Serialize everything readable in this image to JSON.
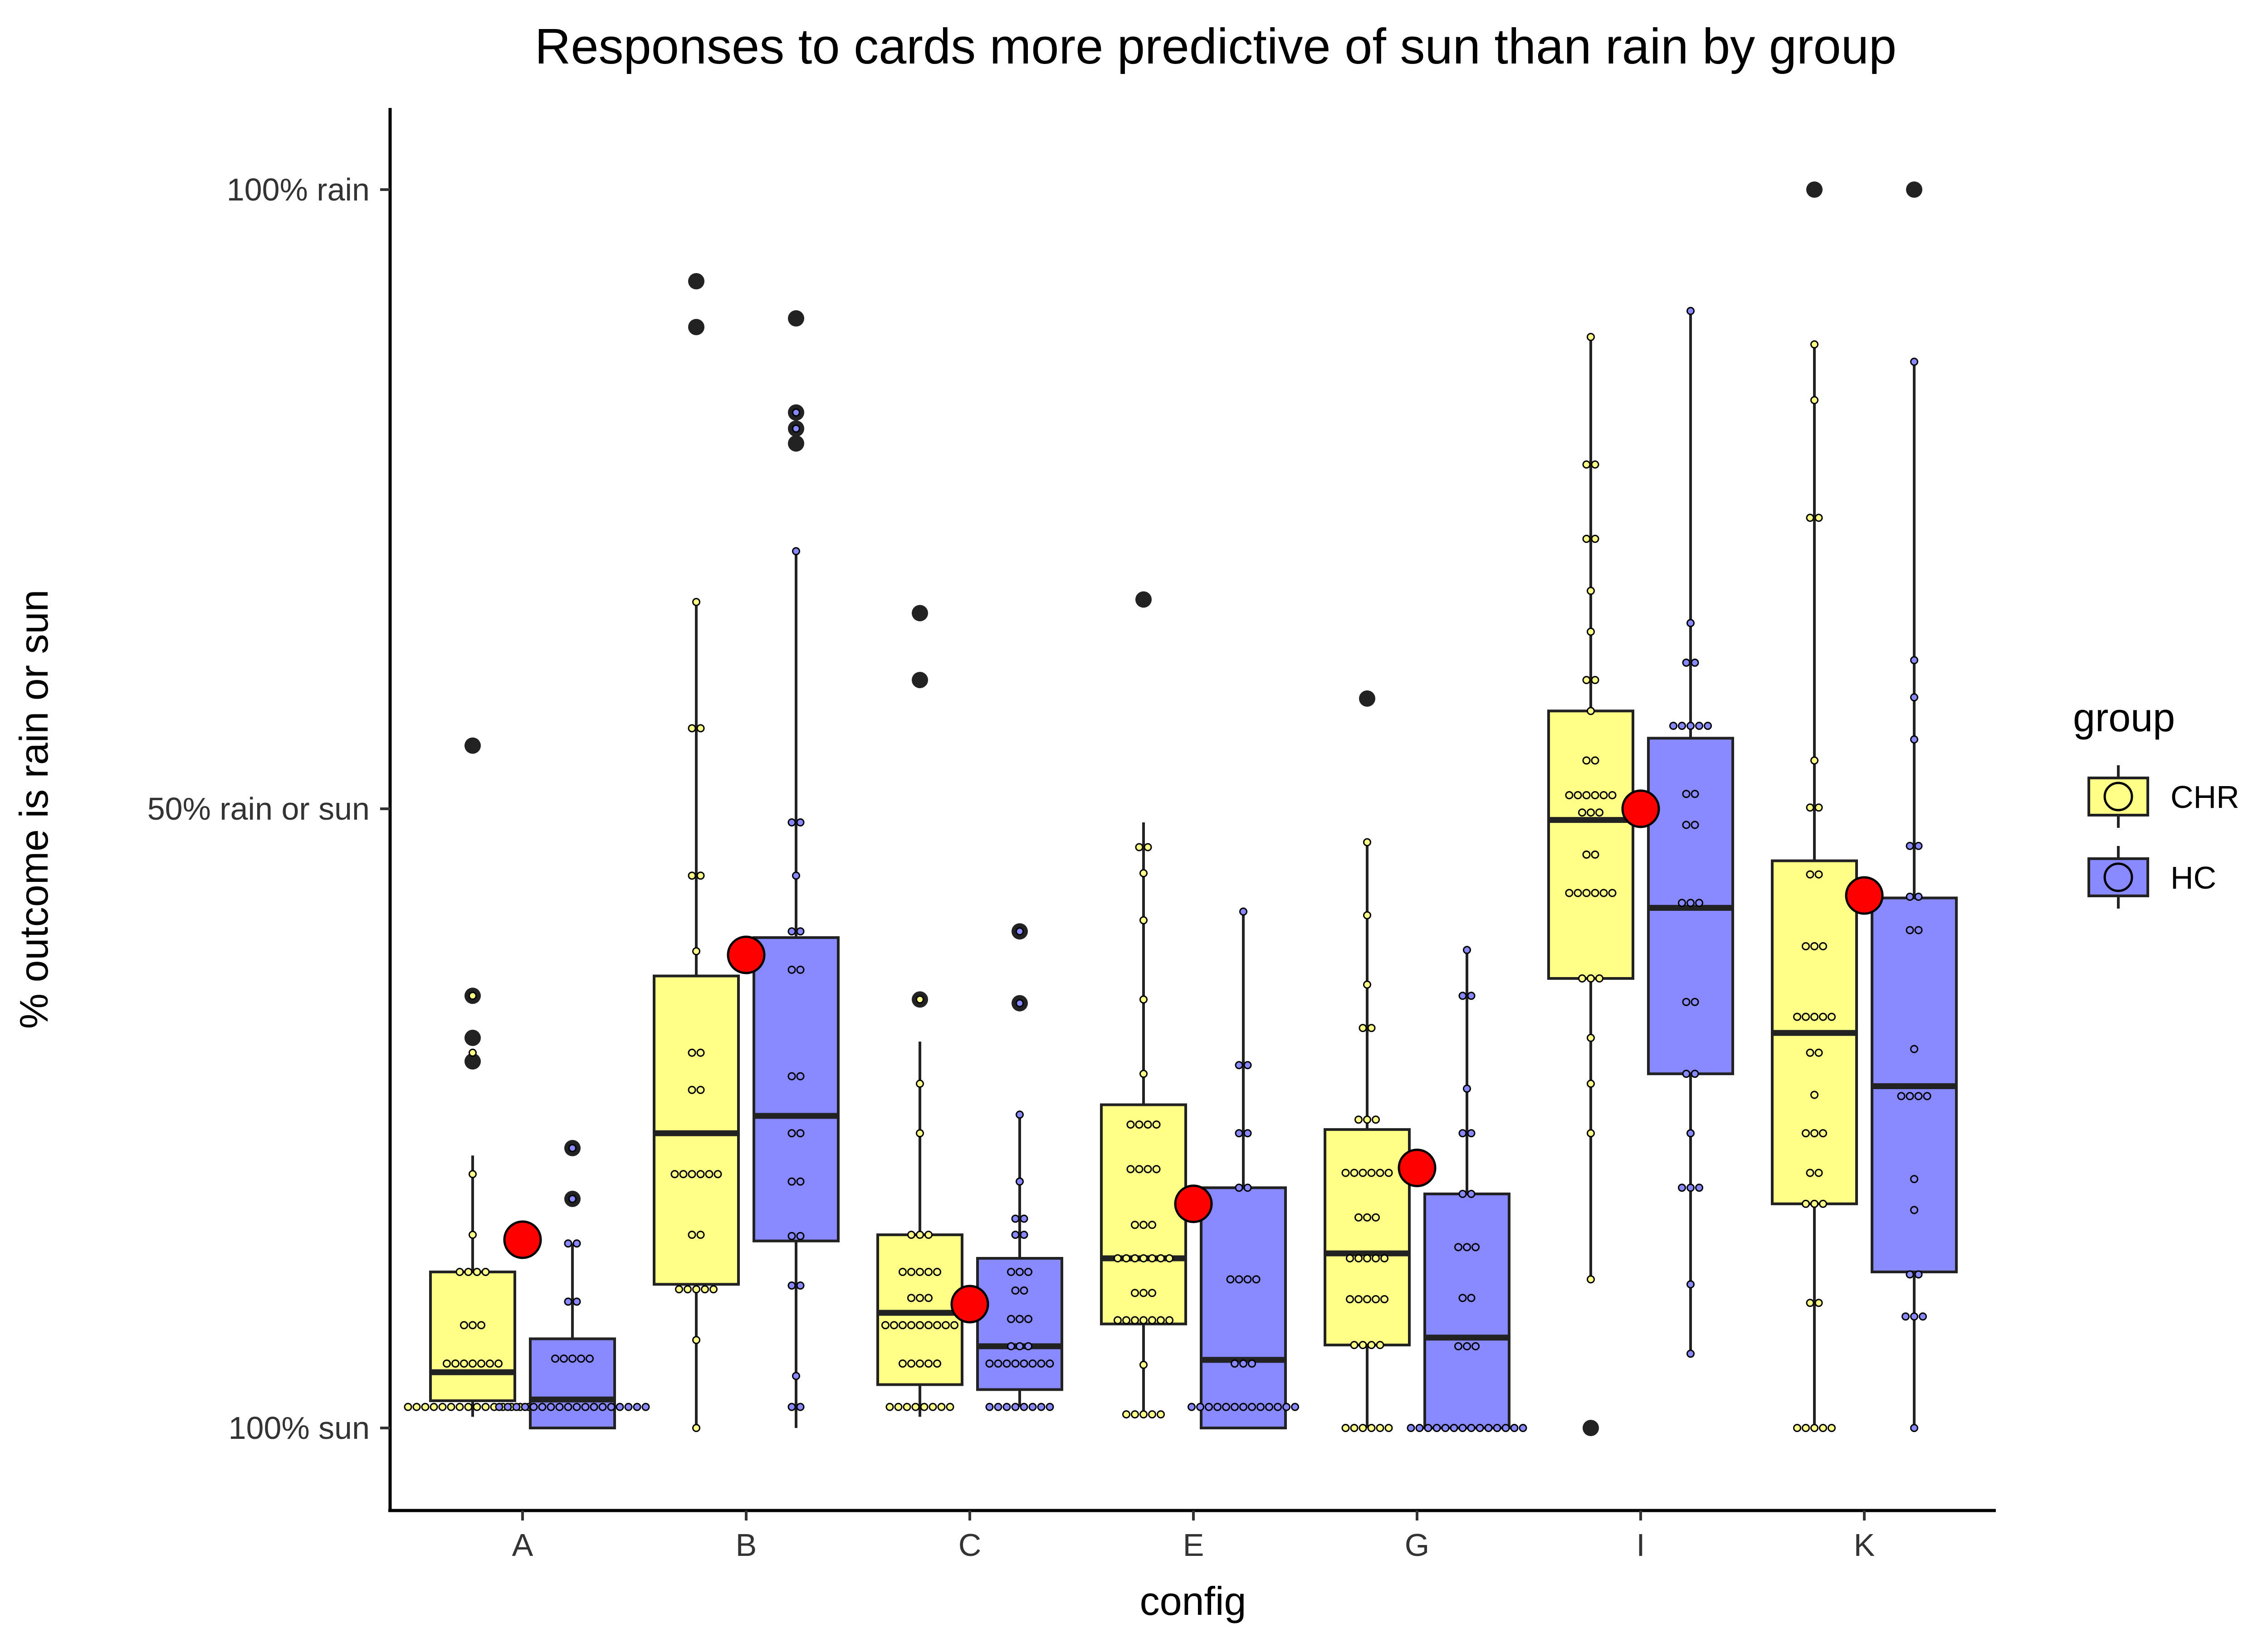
{
  "chart_data": {
    "type": "box",
    "title": "Responses to cards more predictive of sun than rain by group",
    "xlabel": "config",
    "ylabel": "% outcome is rain or sun",
    "categories": [
      "A",
      "B",
      "C",
      "E",
      "G",
      "I",
      "K"
    ],
    "y_ticks": [
      {
        "value": 0,
        "label": "100% sun"
      },
      {
        "value": 50,
        "label": "50% rain or sun"
      },
      {
        "value": 100,
        "label": "100% rain"
      }
    ],
    "ylim": [
      -6.7,
      106.7
    ],
    "grid": false,
    "legend": {
      "title": "group",
      "position": "right"
    },
    "series": [
      {
        "name": "CHR",
        "color": "#ffff88",
        "boxes": [
          {
            "category": "A",
            "q1": 2.2,
            "median": 4.5,
            "q3": 12.6,
            "whisker_low": 0.9,
            "whisker_high": 22,
            "outliers": [
              55.1,
              34.9,
              31.5,
              29.6
            ],
            "points": [
              1.7,
              1.7,
              1.7,
              1.7,
              1.7,
              1.7,
              1.7,
              1.7,
              1.7,
              1.7,
              1.7,
              1.7,
              1.7,
              1.7,
              1.7,
              1.7,
              5.2,
              5.2,
              5.2,
              5.2,
              5.2,
              5.2,
              5.2,
              8.3,
              8.3,
              8.3,
              12.6,
              12.6,
              12.6,
              12.6,
              15.6,
              20.5,
              30.3,
              34.9
            ]
          },
          {
            "category": "B",
            "q1": 11.6,
            "median": 23.8,
            "q3": 36.5,
            "whisker_low": 0,
            "whisker_high": 66.7,
            "outliers": [
              92.6,
              88.9
            ],
            "points": [
              0,
              7.1,
              11.2,
              11.2,
              11.2,
              11.2,
              11.2,
              15.6,
              15.6,
              20.5,
              20.5,
              20.5,
              20.5,
              20.5,
              20.5,
              27.3,
              27.3,
              30.3,
              30.3,
              38.5,
              44.6,
              44.6,
              56.5,
              56.5,
              66.7
            ]
          },
          {
            "category": "C",
            "q1": 3.5,
            "median": 9.3,
            "q3": 15.6,
            "whisker_low": 0.9,
            "whisker_high": 31.2,
            "outliers": [
              65.8,
              60.4,
              34.6
            ],
            "points": [
              1.7,
              1.7,
              1.7,
              1.7,
              1.7,
              1.7,
              1.7,
              1.7,
              5.2,
              5.2,
              5.2,
              5.2,
              5.2,
              8.3,
              8.3,
              8.3,
              8.3,
              8.3,
              8.3,
              8.3,
              8.3,
              8.3,
              10.5,
              10.5,
              10.5,
              12.6,
              12.6,
              12.6,
              12.6,
              12.6,
              15.6,
              15.6,
              15.6,
              23.8,
              27.8,
              34.6
            ]
          },
          {
            "category": "E",
            "q1": 8.4,
            "median": 13.7,
            "q3": 26.1,
            "whisker_low": 0.9,
            "whisker_high": 48.9,
            "outliers": [
              66.9
            ],
            "points": [
              1.1,
              1.1,
              1.1,
              1.1,
              1.1,
              5.1,
              8.7,
              8.7,
              8.7,
              8.7,
              8.7,
              8.7,
              8.7,
              10.9,
              10.9,
              10.9,
              13.7,
              13.7,
              13.7,
              13.7,
              13.7,
              13.7,
              13.7,
              16.4,
              16.4,
              16.4,
              20.9,
              20.9,
              20.9,
              20.9,
              24.5,
              24.5,
              24.5,
              24.5,
              28.6,
              34.6,
              41,
              44.8,
              46.9,
              46.9
            ]
          },
          {
            "category": "G",
            "q1": 6.7,
            "median": 14.1,
            "q3": 24.1,
            "whisker_low": 0,
            "whisker_high": 47.3,
            "outliers": [
              58.9
            ],
            "points": [
              0,
              0,
              0,
              0,
              0,
              0,
              6.7,
              6.7,
              6.7,
              6.7,
              10.4,
              10.4,
              10.4,
              10.4,
              10.4,
              13.7,
              13.7,
              13.7,
              13.7,
              13.7,
              17,
              17,
              17,
              20.6,
              20.6,
              20.6,
              20.6,
              20.6,
              20.6,
              24.9,
              24.9,
              24.9,
              32.3,
              32.3,
              35.8,
              41.4,
              47.3
            ]
          },
          {
            "category": "I",
            "q1": 36.3,
            "median": 49.1,
            "q3": 57.9,
            "whisker_low": 12,
            "whisker_high": 88.1,
            "outliers": [
              0
            ],
            "points": [
              12,
              23.8,
              27.8,
              31.5,
              36.3,
              36.3,
              36.3,
              43.2,
              43.2,
              43.2,
              43.2,
              43.2,
              43.2,
              46.3,
              46.3,
              49.7,
              49.7,
              49.7,
              51.1,
              51.1,
              51.1,
              51.1,
              51.1,
              51.1,
              53.9,
              53.9,
              57.9,
              60.4,
              60.4,
              64.3,
              67.6,
              71.8,
              71.8,
              77.8,
              77.8,
              88.1
            ]
          },
          {
            "category": "K",
            "q1": 18.1,
            "median": 31.9,
            "q3": 45.8,
            "whisker_low": 0,
            "whisker_high": 87.5,
            "outliers": [
              100
            ],
            "points": [
              0,
              0,
              0,
              0,
              0,
              10.1,
              10.1,
              18.1,
              18.1,
              18.1,
              20.6,
              20.6,
              23.8,
              23.8,
              23.8,
              26.9,
              30.3,
              30.3,
              33.2,
              33.2,
              33.2,
              33.2,
              33.2,
              38.9,
              38.9,
              38.9,
              44.7,
              44.7,
              50.1,
              50.1,
              53.9,
              73.5,
              73.5,
              83,
              87.5
            ]
          }
        ]
      },
      {
        "name": "HC",
        "color": "#8888ff",
        "boxes": [
          {
            "category": "A",
            "q1": 0,
            "median": 2.3,
            "q3": 7.2,
            "whisker_low": 0,
            "whisker_high": 14.9,
            "outliers": [
              22.6,
              18.5
            ],
            "points": [
              1.7,
              1.7,
              1.7,
              1.7,
              1.7,
              1.7,
              1.7,
              1.7,
              1.7,
              1.7,
              1.7,
              1.7,
              1.7,
              1.7,
              1.7,
              1.7,
              1.7,
              1.7,
              5.6,
              5.6,
              5.6,
              5.6,
              5.6,
              10.2,
              10.2,
              14.9,
              14.9,
              18.5,
              22.6
            ]
          },
          {
            "category": "B",
            "q1": 15.1,
            "median": 25.2,
            "q3": 39.6,
            "whisker_low": 0,
            "whisker_high": 70.8,
            "outliers": [
              89.6,
              82,
              80.7,
              79.5
            ],
            "points": [
              1.7,
              1.7,
              4.2,
              11.5,
              11.5,
              15.5,
              15.5,
              19.9,
              19.9,
              23.8,
              23.8,
              28.4,
              28.4,
              37,
              37,
              40.1,
              40.1,
              44.6,
              48.9,
              48.9,
              70.8,
              80.7,
              82
            ]
          },
          {
            "category": "C",
            "q1": 3.1,
            "median": 6.6,
            "q3": 13.7,
            "whisker_low": 1.7,
            "whisker_high": 25.3,
            "outliers": [
              40.1,
              34.3
            ],
            "points": [
              1.7,
              1.7,
              1.7,
              1.7,
              1.7,
              1.7,
              1.7,
              1.7,
              5.2,
              5.2,
              5.2,
              5.2,
              5.2,
              5.2,
              5.2,
              5.2,
              6.6,
              6.6,
              6.6,
              8.8,
              8.8,
              8.8,
              11.1,
              11.1,
              12.6,
              12.6,
              12.6,
              15.6,
              15.6,
              16.9,
              16.9,
              19.9,
              25.3,
              34.3,
              40.1
            ]
          },
          {
            "category": "G",
            "q1": 0,
            "median": 7.3,
            "q3": 18.9,
            "whisker_low": 0,
            "whisker_high": 38.6,
            "outliers": [],
            "points": [
              0,
              0,
              0,
              0,
              0,
              0,
              0,
              0,
              0,
              0,
              0,
              0,
              0,
              0,
              6.6,
              6.6,
              6.6,
              10.5,
              10.5,
              14.6,
              14.6,
              14.6,
              18.9,
              18.9,
              23.8,
              23.8,
              27.4,
              34.9,
              34.9,
              38.6
            ]
          },
          {
            "category": "I",
            "q1": 28.6,
            "median": 42,
            "q3": 55.7,
            "whisker_low": 6,
            "whisker_high": 90.2,
            "outliers": [],
            "points": [
              6,
              11.6,
              19.4,
              19.4,
              19.4,
              23.8,
              28.6,
              28.6,
              34.4,
              34.4,
              42.4,
              42.4,
              42.4,
              48.7,
              48.7,
              51.2,
              51.2,
              56.7,
              56.7,
              56.7,
              56.7,
              56.7,
              61.8,
              61.8,
              65,
              90.2
            ]
          },
          {
            "category": "E",
            "q1": 0,
            "median": 5.5,
            "q3": 19.4,
            "whisker_low": 0,
            "whisker_high": 41.7,
            "outliers": [],
            "points": [
              1.7,
              1.7,
              1.7,
              1.7,
              1.7,
              1.7,
              1.7,
              1.7,
              1.7,
              1.7,
              1.7,
              1.7,
              1.7,
              5.2,
              5.2,
              5.2,
              12,
              12,
              12,
              12,
              19.4,
              19.4,
              23.8,
              23.8,
              29.3,
              29.3,
              41.7
            ]
          },
          {
            "category": "K",
            "q1": 12.6,
            "median": 27.6,
            "q3": 42.8,
            "whisker_low": 0,
            "whisker_high": 86.1,
            "outliers": [
              100
            ],
            "points": [
              0,
              9,
              9,
              9,
              12.4,
              12.4,
              17.6,
              20.1,
              26.8,
              26.8,
              26.8,
              26.8,
              30.6,
              40.2,
              40.2,
              42.9,
              42.9,
              47,
              47,
              55.6,
              59,
              62,
              86.1
            ]
          }
        ]
      }
    ],
    "means": [
      {
        "category": "A",
        "value": 15.2
      },
      {
        "category": "B",
        "value": 38.2
      },
      {
        "category": "C",
        "value": 10.0
      },
      {
        "category": "E",
        "value": 18.1
      },
      {
        "category": "G",
        "value": 21.0
      },
      {
        "category": "I",
        "value": 50.0
      },
      {
        "category": "K",
        "value": 43.0
      }
    ],
    "mean_color": "#ff0000"
  }
}
